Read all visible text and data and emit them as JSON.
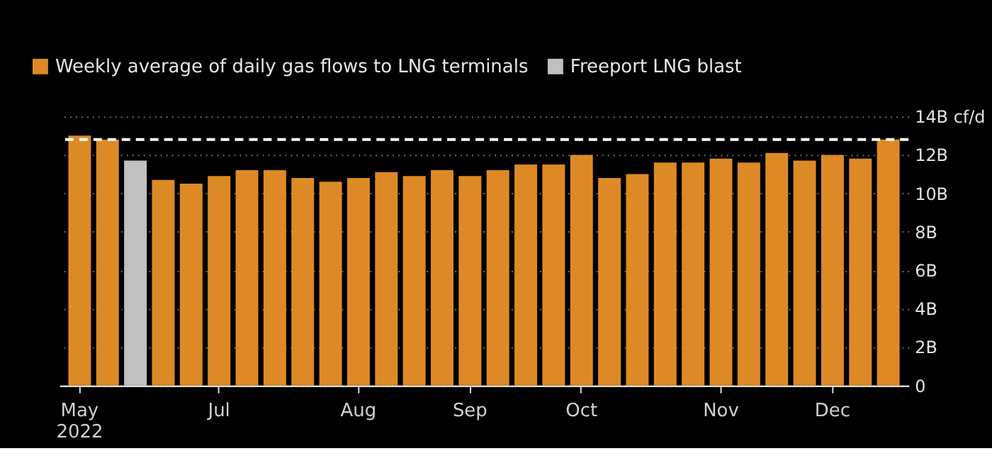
{
  "chart_data": {
    "type": "bar",
    "categories": [
      "May 2022",
      null,
      null,
      null,
      null,
      "Jul",
      null,
      null,
      null,
      null,
      "Aug",
      null,
      null,
      null,
      "Sep",
      null,
      null,
      null,
      "Oct",
      null,
      null,
      null,
      null,
      "Nov",
      null,
      null,
      null,
      "Dec",
      null,
      null
    ],
    "series": [
      {
        "name": "Weekly average of daily gas flows to LNG terminals",
        "color": "#dd8a26",
        "values": [
          13.0,
          12.8,
          null,
          10.7,
          10.5,
          10.9,
          11.2,
          11.2,
          10.8,
          10.6,
          10.8,
          11.1,
          10.9,
          11.2,
          10.9,
          11.2,
          11.5,
          11.5,
          12.0,
          10.8,
          11.0,
          11.6,
          11.6,
          11.8,
          11.6,
          12.1,
          11.7,
          12.0,
          11.8,
          12.8
        ]
      },
      {
        "name": "Freeport LNG blast",
        "color": "#c0c0c0",
        "values": [
          null,
          null,
          11.7,
          null,
          null,
          null,
          null,
          null,
          null,
          null,
          null,
          null,
          null,
          null,
          null,
          null,
          null,
          null,
          null,
          null,
          null,
          null,
          null,
          null,
          null,
          null,
          null,
          null,
          null,
          null
        ]
      }
    ],
    "ylim": [
      0,
      14
    ],
    "yticks": [
      0,
      {
        "value": 2,
        "label": "2B"
      },
      {
        "value": 4,
        "label": "4B"
      },
      {
        "value": 6,
        "label": "6B"
      },
      {
        "value": 8,
        "label": "8B"
      },
      {
        "value": 10,
        "label": "10B"
      },
      {
        "value": 12,
        "label": "12B"
      },
      {
        "value": 14,
        "label": "14B cf/d"
      }
    ],
    "grid": "y",
    "legend": "top left",
    "ref_lines": [
      {
        "axis": "y",
        "value": 12.8,
        "color": "#ffffff",
        "line_style": "dashed"
      }
    ]
  }
}
